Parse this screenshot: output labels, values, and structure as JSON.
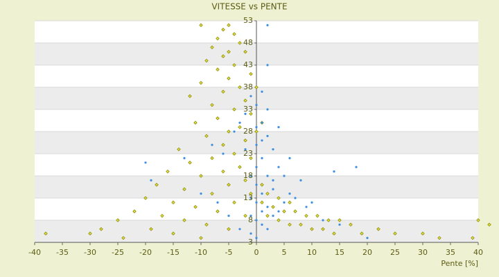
{
  "chart_data": {
    "type": "scatter",
    "title": "VITESSE vs PENTE",
    "x_label": "Pente [%]",
    "xlim": [
      -40,
      40
    ],
    "xticks": [
      -40,
      -35,
      -30,
      -25,
      -20,
      -15,
      -10,
      -5,
      0,
      5,
      10,
      15,
      20,
      25,
      30,
      35,
      40
    ],
    "ylim": [
      3,
      53
    ],
    "yticks": [
      3,
      8,
      13,
      18,
      23,
      28,
      33,
      38,
      43,
      48,
      53
    ],
    "grid": true,
    "series": [
      {
        "color": "#8c8c00",
        "x": [
          -5,
          -6,
          -10,
          -4,
          -7,
          -3,
          -5,
          -8,
          -6,
          -2,
          -9,
          -4,
          -7,
          -1,
          -5,
          -10,
          -3,
          -6,
          -12,
          -2,
          -8,
          -4,
          -1,
          -7,
          -11,
          -3,
          -5,
          -9,
          0,
          -2,
          -6,
          -14,
          -4,
          -1,
          -8,
          -12,
          -3,
          -16,
          -6,
          -10,
          -2,
          -18,
          -5,
          -13,
          -8,
          -1,
          -20,
          -15,
          -4,
          -11,
          -22,
          -7,
          -17,
          -2,
          -25,
          -13,
          -9,
          -28,
          -19,
          -5,
          -30,
          -15,
          -10,
          -38,
          -24,
          1,
          3,
          5,
          7,
          9,
          11,
          13,
          15,
          17,
          2,
          4,
          6,
          8,
          10,
          12,
          14,
          19,
          22,
          25,
          30,
          33,
          40,
          42,
          39,
          1,
          2,
          4,
          6,
          0,
          1
        ],
        "values": [
          52,
          51,
          52,
          50,
          49,
          48,
          46,
          47,
          45,
          46,
          44,
          43,
          42,
          41,
          40,
          39,
          38,
          37,
          36,
          35,
          34,
          33,
          32,
          31,
          30,
          29,
          28,
          27,
          28,
          26,
          25,
          24,
          23,
          22,
          22,
          21,
          20,
          19,
          19,
          18,
          17,
          16,
          16,
          15,
          14,
          14,
          13,
          12,
          12,
          11,
          10,
          10,
          9,
          9,
          8,
          8,
          7,
          6,
          6,
          6,
          5,
          5,
          4,
          5,
          4,
          12,
          11,
          10,
          10,
          9,
          9,
          8,
          8,
          7,
          9,
          8,
          7,
          7,
          6,
          6,
          5,
          5,
          6,
          5,
          5,
          4,
          8,
          7,
          4,
          16,
          14,
          13,
          12,
          38,
          30
        ]
      },
      {
        "color": "#3d8fe0",
        "x": [
          0,
          1,
          2,
          0,
          1,
          3,
          -1,
          0,
          2,
          1,
          -2,
          0,
          1,
          2,
          3,
          -1,
          0,
          1,
          2,
          4,
          5,
          6,
          8,
          14,
          18,
          -20,
          -19,
          -13,
          -8,
          -6,
          -4,
          -3,
          -2,
          0,
          1,
          2,
          2,
          3,
          4,
          5,
          7,
          9,
          12,
          15,
          -1,
          0,
          -3,
          -5,
          -7,
          -10,
          3,
          1,
          0,
          2,
          -1,
          4,
          6,
          10,
          20,
          -1
        ],
        "values": [
          20,
          22,
          18,
          16,
          14,
          15,
          18,
          25,
          27,
          30,
          24,
          12,
          10,
          11,
          9,
          9,
          8,
          7,
          6,
          10,
          12,
          14,
          17,
          19,
          20,
          21,
          17,
          22,
          25,
          23,
          28,
          30,
          32,
          34,
          37,
          43,
          52,
          17,
          20,
          18,
          13,
          11,
          8,
          7,
          5,
          4,
          6,
          9,
          12,
          14,
          24,
          26,
          29,
          33,
          36,
          29,
          22,
          12,
          4,
          13
        ]
      }
    ]
  }
}
